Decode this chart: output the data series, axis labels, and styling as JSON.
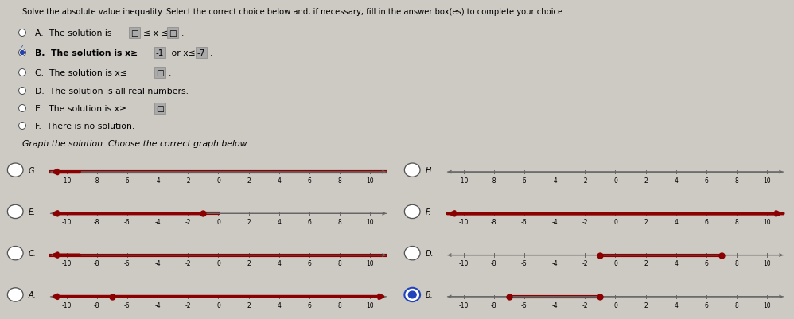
{
  "title": "Solve the absolute value inequality. Select the correct choice below and, if necessary, fill in the answer box(es) to complete your choice.",
  "bg_color": "#cdc9c3",
  "text_color": "#000000",
  "red_color": "#8b0000",
  "axis_color": "#666666",
  "choices": [
    {
      "label": "A.",
      "text": "The solution is",
      "type": "box_leq_x_leq_box",
      "selected": false
    },
    {
      "label": "B.",
      "text": "The solution is x≥",
      "val1": "-1",
      "suffix": " or x≤ ",
      "val2": "-7",
      "type": "B_selected",
      "selected": true
    },
    {
      "label": "C.",
      "text": "The solution is x≤",
      "type": "box_suffix",
      "selected": false
    },
    {
      "label": "D.",
      "text": "The solution is all real numbers.",
      "type": "plain",
      "selected": false
    },
    {
      "label": "E.",
      "text": "The solution is x≥",
      "type": "box_suffix",
      "selected": false
    },
    {
      "label": "F.",
      "text": "There is no solution.",
      "type": "plain",
      "selected": false
    }
  ],
  "graph_label": "Graph the solution. Choose the correct graph below.",
  "graphs": [
    {
      "id": "A",
      "selected": false,
      "type": "ray_right_from_neg7"
    },
    {
      "id": "B",
      "selected": true,
      "type": "segment_neg7_neg1"
    },
    {
      "id": "C",
      "selected": false,
      "type": "full_red_left_arrow"
    },
    {
      "id": "D",
      "selected": false,
      "type": "segment_neg1_to_7"
    },
    {
      "id": "E",
      "selected": false,
      "type": "ray_left_from_neg1"
    },
    {
      "id": "F",
      "selected": false,
      "type": "full_both_arrows"
    },
    {
      "id": "G",
      "selected": false,
      "type": "full_red_left_arrow"
    },
    {
      "id": "H",
      "selected": false,
      "type": "empty"
    }
  ]
}
